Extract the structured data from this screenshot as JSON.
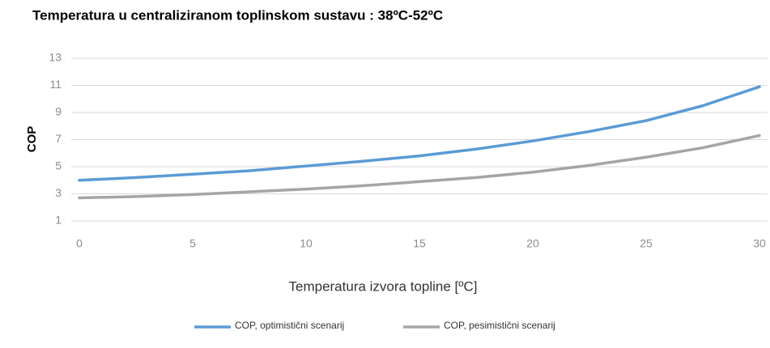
{
  "chart_data": {
    "type": "line",
    "title": "Temperatura u centraliziranom toplinskom sustavu : 38ºC-52ºC",
    "x_label": "Temperatura izvora topline [ºC]",
    "y_label": "COP",
    "x": [
      0,
      2.5,
      5,
      7.5,
      10,
      12.5,
      15,
      17.5,
      20,
      22.5,
      25,
      27.5,
      30
    ],
    "series": [
      {
        "name": "COP, optimistični scenarij",
        "color": "#5b9bd5",
        "values": [
          4.0,
          4.2,
          4.45,
          4.7,
          5.05,
          5.4,
          5.8,
          6.3,
          6.9,
          7.6,
          8.4,
          9.5,
          10.9
        ]
      },
      {
        "name": "COP, pesimistični scenarij",
        "color": "#a5a5a5",
        "values": [
          2.7,
          2.8,
          2.95,
          3.15,
          3.35,
          3.6,
          3.9,
          4.2,
          4.6,
          5.1,
          5.7,
          6.4,
          7.3
        ]
      }
    ],
    "xlim": [
      0,
      30
    ],
    "xticks": [
      0,
      5,
      10,
      15,
      20,
      25,
      30
    ],
    "ylim": [
      1,
      13
    ],
    "yticks": [
      1,
      3,
      5,
      7,
      9,
      11,
      13
    ],
    "grid": true,
    "legend": "bottom"
  }
}
